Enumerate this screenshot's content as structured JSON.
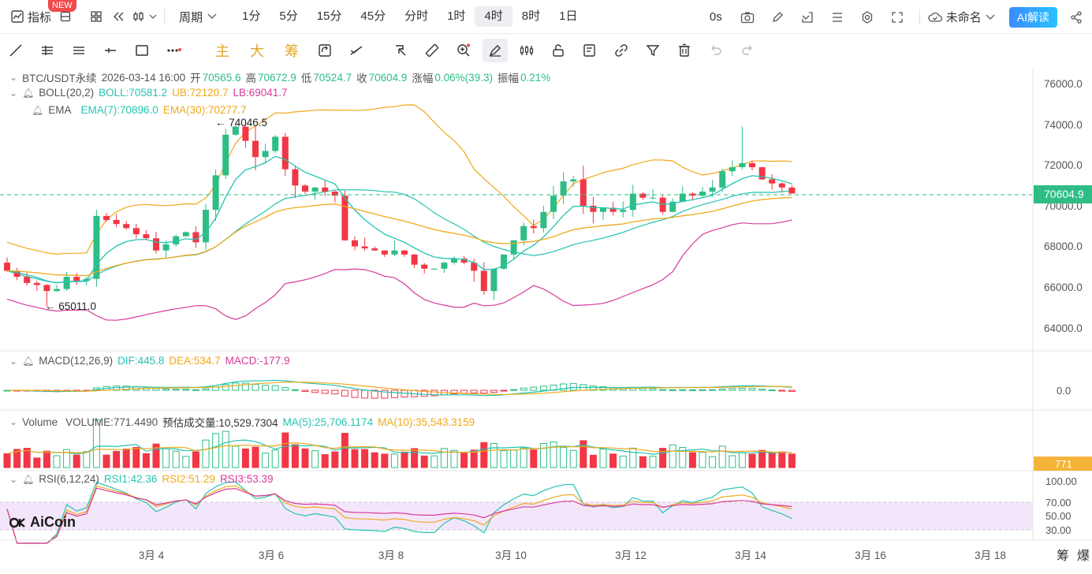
{
  "topbar": {
    "indicator_label": "指标",
    "new_badge": "NEW",
    "period_label": "周期",
    "intervals": [
      "1分",
      "5分",
      "15分",
      "45分",
      "分时",
      "1时",
      "4时",
      "8时",
      "1日"
    ],
    "active_interval": "4时",
    "countdown": "0s",
    "layout_name": "未命名",
    "ai_button": "AI解读"
  },
  "toolbar2": {
    "main_label": "主",
    "big_label": "大",
    "chip_label": "筹"
  },
  "legend": {
    "symbol": "BTC/USDT永续",
    "datetime": "2026-03-14 16:00",
    "open_label": "开",
    "open": "70565.6",
    "high_label": "高",
    "high": "70672.9",
    "low_label": "低",
    "low": "70524.7",
    "close_label": "收",
    "close": "70604.9",
    "change_label": "涨幅",
    "change": "0.06%(39.3)",
    "amp_label": "振幅",
    "amp": "0.21%",
    "boll": "BOLL(20,2)",
    "boll_mid": "BOLL:70581.2",
    "boll_ub": "UB:72120.7",
    "boll_lb": "LB:69041.7",
    "ema": "EMA",
    "ema7": "EMA(7):70896.0",
    "ema30": "EMA(30):70277.7",
    "macd": "MACD(12,26,9)",
    "dif": "DIF:445.8",
    "dea": "DEA:534.7",
    "macd_val": "MACD:-177.9",
    "volume": "Volume",
    "volume_val": "VOLUME:771.4490",
    "est_vol": "预估成交量:10,529.7304",
    "ma5": "MA(5):25,706.1174",
    "ma10": "MA(10):35,543.3159",
    "rsi": "RSI(6,12,24)",
    "rsi1": "RSI1:42.36",
    "rsi2": "RSI2:51.29",
    "rsi3": "RSI3:53.39"
  },
  "annotations": {
    "high_marker": "← 74046.5",
    "low_marker": "← 65011.0"
  },
  "price_axis": [
    "76000.0",
    "74000.0",
    "72000.0",
    "70000.0",
    "68000.0",
    "66000.0",
    "64000.0"
  ],
  "last_price": "70604.9",
  "macd_axis": [
    "0.0"
  ],
  "volume_axis_label": "771",
  "rsi_axis": [
    "100.00",
    "70.00",
    "50.00",
    "30.00"
  ],
  "time_axis": [
    "3月 4",
    "3月 6",
    "3月 8",
    "3月 10",
    "3月 12",
    "3月 14",
    "3月 16",
    "3月 18"
  ],
  "bottom_right": {
    "chip": "筹",
    "burst": "爆"
  },
  "brand": "AiCoin",
  "colors": {
    "up": "#2ebd85",
    "down": "#f23645",
    "ema7": "#25c4b0",
    "ema30": "#f0a81c",
    "boll_lb": "#d8399b",
    "rsi_band": "#f3e6fb"
  },
  "chart_data": {
    "type": "candlestick",
    "closes": [
      66800,
      66500,
      66200,
      66100,
      65800,
      65900,
      66500,
      66300,
      66400,
      69500,
      69300,
      69100,
      68900,
      68600,
      68400,
      67800,
      68100,
      68500,
      68700,
      68200,
      69800,
      71500,
      73500,
      73900,
      73200,
      72400,
      72700,
      73400,
      71800,
      71000,
      70700,
      70900,
      70700,
      70500,
      68300,
      68000,
      67900,
      67800,
      67600,
      67800,
      67600,
      67100,
      66900,
      66900,
      67200,
      67400,
      67200,
      66800,
      65800,
      66900,
      67600,
      68300,
      69000,
      68900,
      69700,
      70500,
      71200,
      71300,
      70000,
      69700,
      69900,
      69700,
      69800,
      70600,
      70400,
      70400,
      69700,
      70200,
      70600,
      70500,
      70700,
      70900,
      71700,
      71900,
      72100,
      71900,
      71300,
      71100,
      70900,
      70605
    ]
  }
}
